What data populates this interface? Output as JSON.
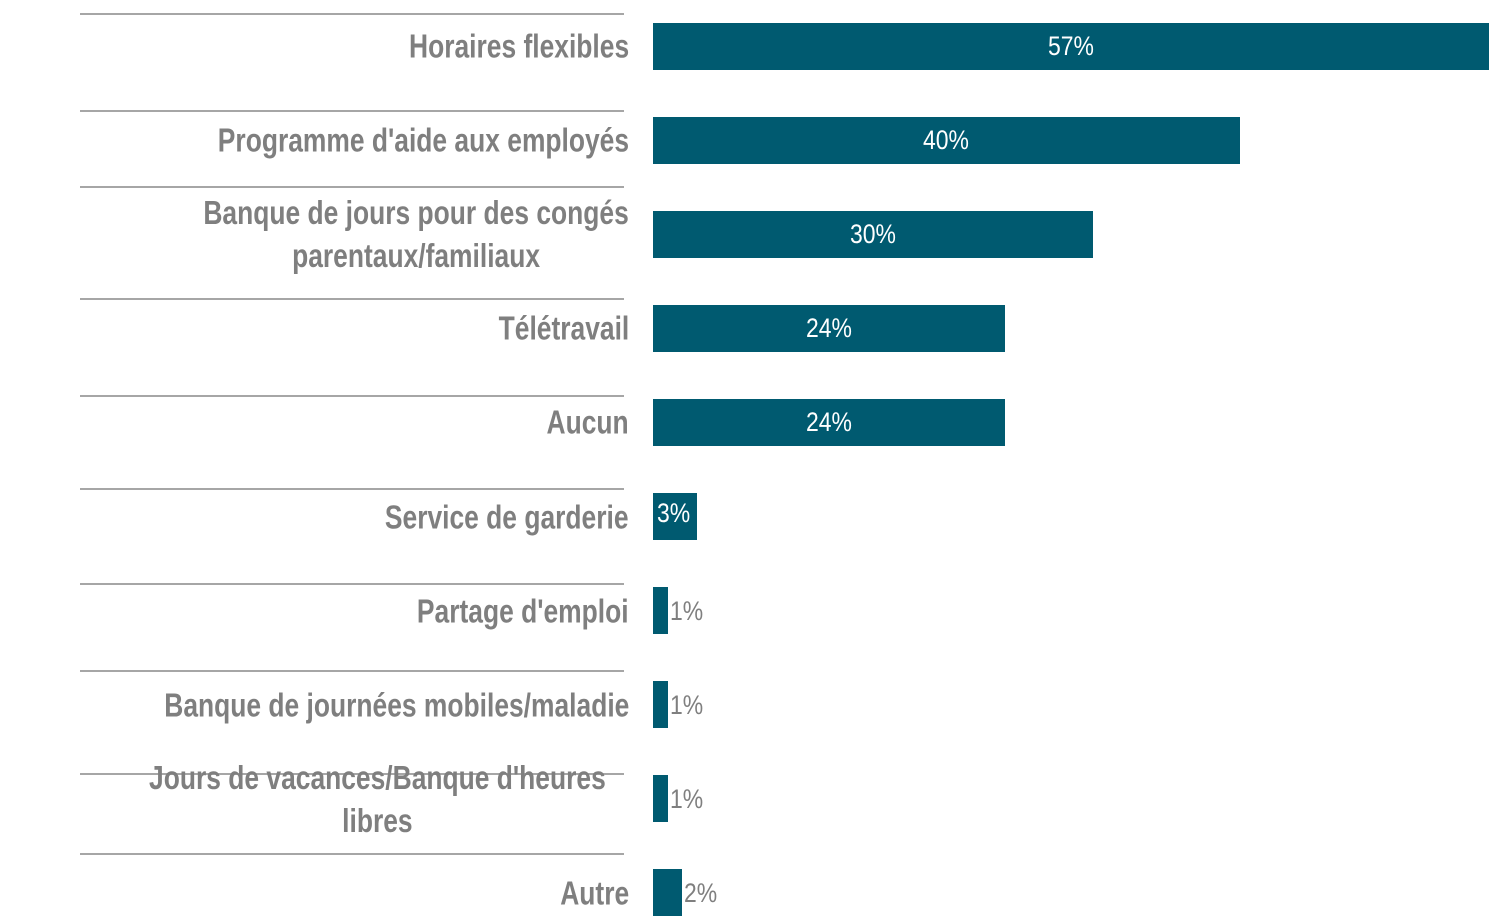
{
  "chart_data": {
    "type": "bar",
    "orientation": "horizontal",
    "categories": [
      "Horaires flexibles",
      "Programme d'aide aux employés",
      "Banque de jours pour des congés\nparentaux/familiaux",
      "Télétravail",
      "Aucun",
      "Service de garderie",
      "Partage d'emploi",
      "Banque de journées mobiles/maladie",
      "Jours de vacances/Banque d'heures libres",
      "Autre"
    ],
    "values": [
      57,
      40,
      30,
      24,
      24,
      3,
      1,
      1,
      1,
      2
    ],
    "value_labels": [
      "57%",
      "40%",
      "30%",
      "24%",
      "24%",
      "3%",
      "1%",
      "1%",
      "1%",
      "2%"
    ],
    "color": "#005a70"
  }
}
